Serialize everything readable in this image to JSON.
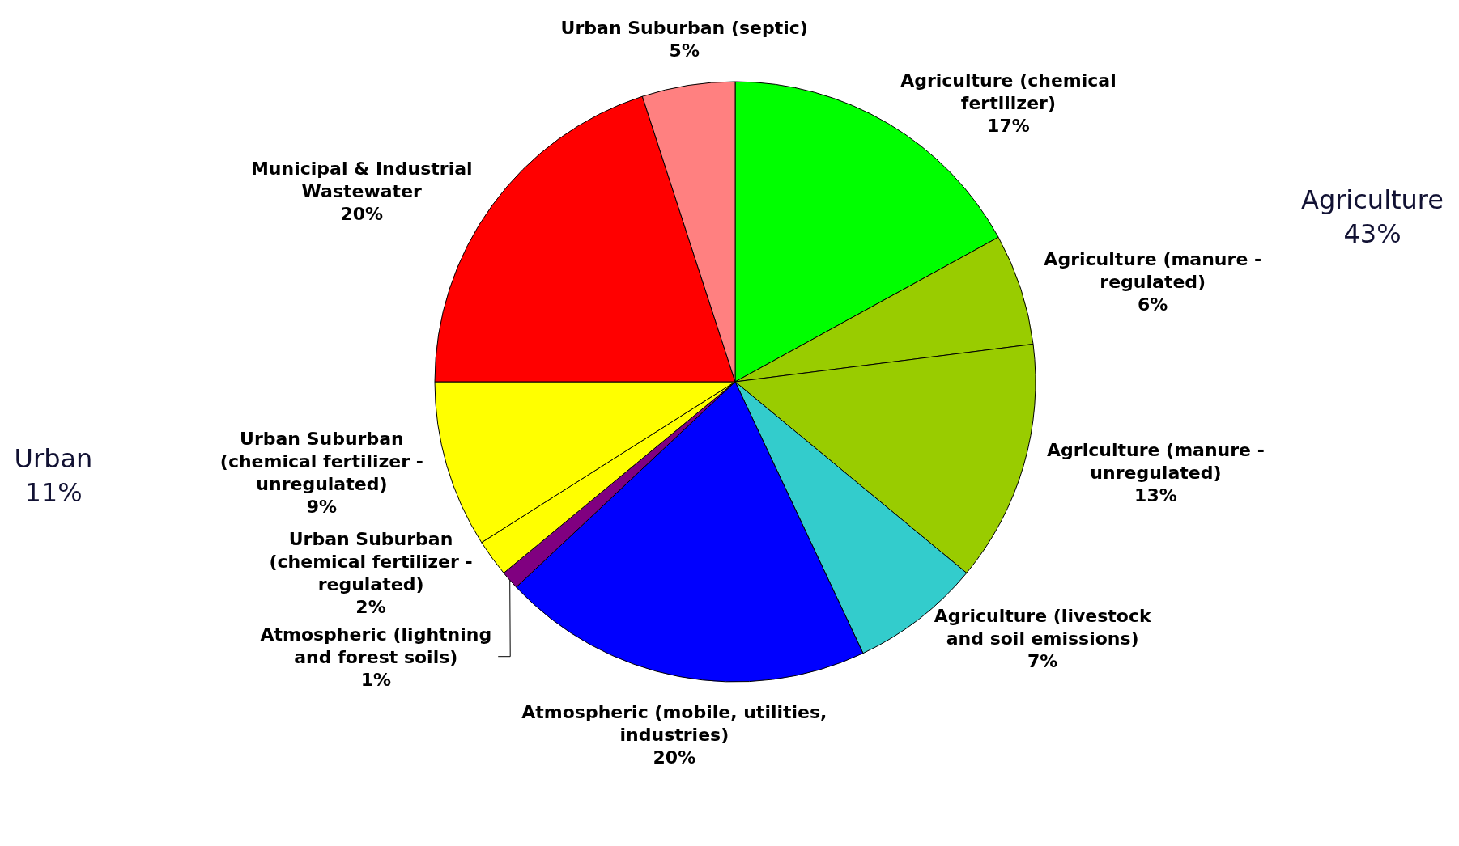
{
  "chart_data": {
    "type": "pie",
    "categories": [
      "Agriculture (chemical fertilizer)",
      "Agriculture (manure - regulated)",
      "Agriculture (manure - unregulated)",
      "Agriculture (livestock and soil emissions)",
      "Atmospheric (mobile, utilities, industries)",
      "Atmospheric (lightning and forest soils)",
      "Urban Suburban (chemical fertilizer - regulated)",
      "Urban Suburban (chemical fertilizer - unregulated)",
      "Municipal & Industrial Wastewater",
      "Urban Suburban (septic)"
    ],
    "values": [
      17,
      6,
      13,
      7,
      20,
      1,
      2,
      9,
      20,
      5
    ],
    "colors": [
      "#00ff00",
      "#99cc00",
      "#99cc00",
      "#33cccc",
      "#0000ff",
      "#800080",
      "#ffff00",
      "#ffff00",
      "#ff0000",
      "#ff8080"
    ],
    "value_labels": [
      "17%",
      "6%",
      "13%",
      "7%",
      "20%",
      "1%",
      "2%",
      "9%",
      "20%",
      "5%"
    ],
    "annotations": [
      "Agriculture 43%",
      "Urban 11%"
    ]
  }
}
